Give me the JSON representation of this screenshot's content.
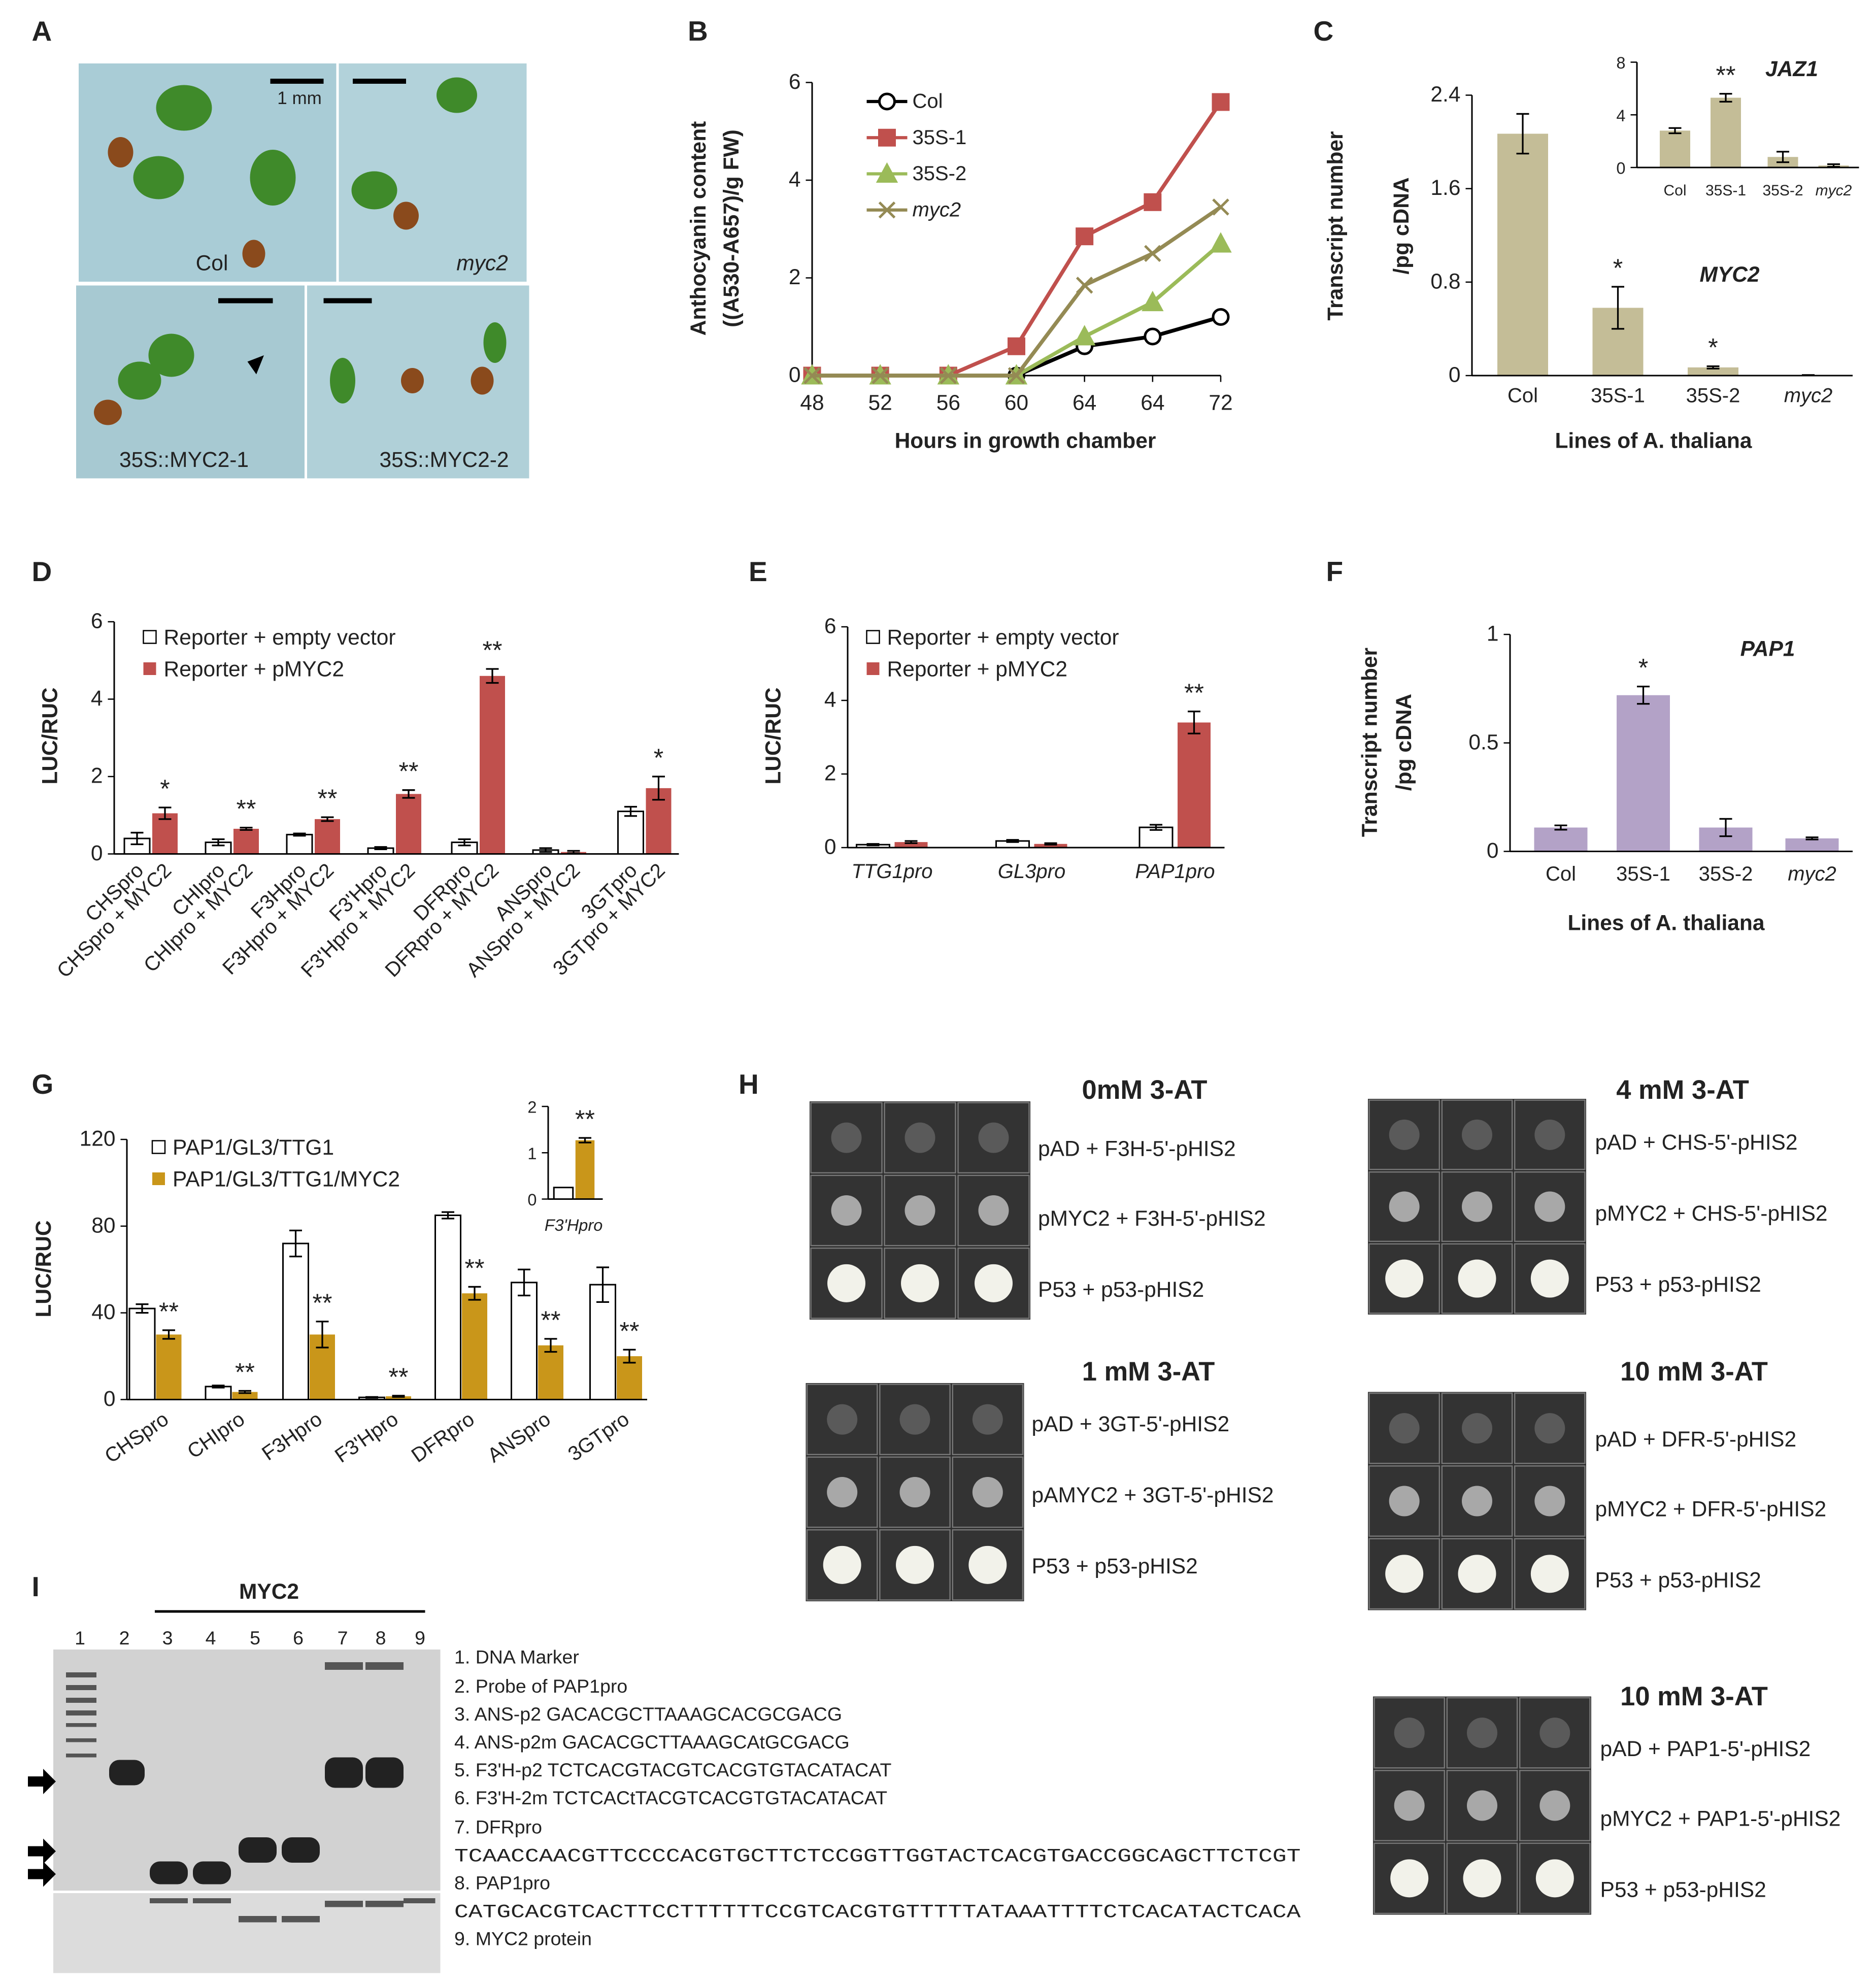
{
  "panel_labels": [
    "A",
    "B",
    "C",
    "D",
    "E",
    "F",
    "G",
    "H",
    "I"
  ],
  "photo_a": {
    "scale_bar": "1 mm",
    "labels": [
      "Col",
      "myc2",
      "35S::MYC2-1",
      "35S::MYC2-2"
    ]
  },
  "chart_data": [
    {
      "type": "line",
      "ylabel": [
        "Anthocyanin content",
        "((A530-A657)/g FW)"
      ],
      "xlabel": "Hours in growth chamber",
      "categories": [
        "48",
        "52",
        "56",
        "60",
        "64",
        "64",
        "72"
      ],
      "ylim": [
        0,
        6
      ],
      "yticks": [
        0,
        2,
        4,
        6
      ],
      "legend": "upper left",
      "series": [
        {
          "name": "Col",
          "color": "#000000",
          "marker": "circle",
          "marker_face": "none",
          "values": [
            0,
            0,
            0,
            0,
            0.6,
            0.8,
            1.2
          ]
        },
        {
          "name": "35S-1",
          "color": "#c0504d",
          "marker": "square",
          "values": [
            0,
            0,
            0,
            0.6,
            2.85,
            3.55,
            5.6
          ]
        },
        {
          "name": "35S-2",
          "color": "#9bbb59",
          "marker": "triangle",
          "values": [
            0,
            0,
            0,
            0,
            0.8,
            1.5,
            2.7
          ]
        },
        {
          "name": "myc2",
          "color": "#948a54",
          "marker": "x",
          "values": [
            0,
            0,
            0,
            0,
            1.85,
            2.5,
            3.45
          ]
        }
      ]
    },
    {
      "type": "bar",
      "title": "MYC2",
      "ylabel": [
        "Transcript number",
        "/pg cDNA"
      ],
      "xlabel": "Lines of A. thaliana",
      "categories": [
        "Col",
        "35S-1",
        "35S-2",
        "myc2"
      ],
      "values": [
        2.07,
        0.58,
        0.07,
        0.005
      ],
      "errors": [
        0.17,
        0.18,
        0.01,
        0
      ],
      "significance": [
        null,
        "*",
        "*",
        null
      ],
      "color": "#c4bd97",
      "ylim": [
        0,
        2.4
      ],
      "yticks": [
        0,
        0.8,
        1.6,
        2.4
      ]
    },
    {
      "type": "bar",
      "title": "JAZ1",
      "categories": [
        "Col",
        "35S-1",
        "35S-2",
        "myc2"
      ],
      "values": [
        2.8,
        5.3,
        0.8,
        0.15
      ],
      "errors": [
        0.2,
        0.3,
        0.4,
        0.1
      ],
      "significance": [
        null,
        "**",
        null,
        null
      ],
      "color": "#c4bd97",
      "ylim": [
        0,
        8
      ],
      "yticks": [
        0,
        4,
        8
      ]
    },
    {
      "type": "bar",
      "ylabel": [
        "LUC/RUC"
      ],
      "ylim": [
        0,
        6
      ],
      "yticks": [
        0,
        2,
        4,
        6
      ],
      "legend": "upper left",
      "series": [
        {
          "name": "Reporter + empty vector",
          "color": "#ffffff",
          "edgecolor": "#000000",
          "labels": [
            "CHSpro",
            "CHIpro",
            "F3Hpro",
            "F3'Hpro",
            "DFRpro",
            "ANSpro",
            "3GTpro"
          ],
          "values": [
            0.4,
            0.3,
            0.5,
            0.15,
            0.3,
            0.1,
            1.1
          ],
          "errors": [
            0.15,
            0.08,
            0.03,
            0.03,
            0.08,
            0.05,
            0.12
          ]
        },
        {
          "name": "Reporter + pMYC2",
          "color": "#c0504d",
          "labels": [
            "CHSpro + MYC2",
            "CHIpro + MYC2",
            "F3Hpro + MYC2",
            "F3'Hpro + MYC2",
            "DFRpro + MYC2",
            "ANSpro + MYC2",
            "3GTpro + MYC2"
          ],
          "values": [
            1.05,
            0.65,
            0.9,
            1.55,
            4.6,
            0.05,
            1.7
          ],
          "errors": [
            0.15,
            0.03,
            0.05,
            0.1,
            0.18,
            0.03,
            0.3
          ],
          "significance": [
            "*",
            "**",
            "**",
            "**",
            "**",
            null,
            "*"
          ]
        }
      ]
    },
    {
      "type": "bar",
      "ylabel": [
        "LUC/RUC"
      ],
      "ylim": [
        0,
        6
      ],
      "yticks": [
        0,
        2,
        4,
        6
      ],
      "legend": "upper left",
      "categories": [
        "TTG1pro",
        "GL3pro",
        "PAP1pro"
      ],
      "series": [
        {
          "name": "Reporter + empty vector",
          "color": "#ffffff",
          "edgecolor": "#000000",
          "values": [
            0.08,
            0.18,
            0.55
          ],
          "errors": [
            0.02,
            0.03,
            0.07
          ]
        },
        {
          "name": "Reporter + pMYC2",
          "color": "#c0504d",
          "values": [
            0.15,
            0.1,
            3.4
          ],
          "errors": [
            0.03,
            0.02,
            0.3
          ],
          "significance": [
            null,
            null,
            "**"
          ]
        }
      ]
    },
    {
      "type": "bar",
      "title": "PAP1",
      "ylabel": [
        "Transcript number",
        "/pg cDNA"
      ],
      "xlabel": "Lines of A. thaliana",
      "categories": [
        "Col",
        "35S-1",
        "35S-2",
        "myc2"
      ],
      "values": [
        0.11,
        0.72,
        0.11,
        0.06
      ],
      "errors": [
        0.01,
        0.04,
        0.04,
        0.005
      ],
      "significance": [
        null,
        "*",
        null,
        null
      ],
      "color": "#b3a2c7",
      "ylim": [
        0,
        1
      ],
      "yticks": [
        0,
        0.5,
        1
      ]
    },
    {
      "type": "bar",
      "ylabel": [
        "LUC/RUC"
      ],
      "ylim": [
        0,
        120
      ],
      "yticks": [
        0,
        40,
        80,
        120
      ],
      "legend": "upper left",
      "categories": [
        "CHSpro",
        "CHIpro",
        "F3Hpro",
        "F3'Hpro",
        "DFRpro",
        "ANSpro",
        "3GTpro"
      ],
      "series": [
        {
          "name": "PAP1/GL3/TTG1",
          "color": "#ffffff",
          "edgecolor": "#000000",
          "values": [
            42,
            6,
            72,
            1,
            85,
            54,
            53
          ],
          "errors": [
            2,
            0.5,
            6,
            0.2,
            1.5,
            6,
            8
          ]
        },
        {
          "name": "PAP1/GL3/TTG1/MYC2",
          "color": "#c9961a",
          "values": [
            30,
            3.5,
            30,
            1.5,
            49,
            25,
            20
          ],
          "errors": [
            2,
            0.5,
            6,
            0.3,
            3,
            3,
            3
          ],
          "significance": [
            "**",
            "**",
            "**",
            "**",
            "**",
            "**",
            "**"
          ]
        }
      ]
    },
    {
      "type": "bar",
      "categories": [
        "F3'Hpro"
      ],
      "ylim": [
        0,
        2
      ],
      "yticks": [
        0,
        1,
        2
      ],
      "series": [
        {
          "color": "#ffffff",
          "edgecolor": "#000000",
          "values": [
            0.25
          ]
        },
        {
          "color": "#c9961a",
          "values": [
            1.27
          ],
          "errors": [
            0.05
          ],
          "significance": [
            "**"
          ]
        }
      ]
    }
  ],
  "yeast_h": [
    {
      "title": "0mM 3-AT",
      "rows": [
        "pAD + F3H-5'-pHIS2",
        "pMYC2 + F3H-5'-pHIS2",
        "P53 + p53-pHIS2"
      ]
    },
    {
      "title": "4 mM 3-AT",
      "rows": [
        "pAD + CHS-5'-pHIS2",
        "pMYC2 + CHS-5'-pHIS2",
        "P53 + p53-pHIS2"
      ]
    },
    {
      "title": "1 mM 3-AT",
      "rows": [
        "pAD + 3GT-5'-pHIS2",
        "pAMYC2 + 3GT-5'-pHIS2",
        "P53 + p53-pHIS2"
      ]
    },
    {
      "title": "10 mM 3-AT",
      "rows": [
        "pAD + DFR-5'-pHIS2",
        "pMYC2 + DFR-5'-pHIS2",
        "P53 + p53-pHIS2"
      ]
    },
    {
      "title": "10 mM 3-AT",
      "rows": [
        "pAD + PAP1-5'-pHIS2",
        "pMYC2 + PAP1-5'-pHIS2",
        "P53 + p53-pHIS2"
      ]
    }
  ],
  "gel_i": {
    "title": "MYC2",
    "lanes": [
      "1",
      "2",
      "3",
      "4",
      "5",
      "6",
      "7",
      "8",
      "9"
    ],
    "legend": [
      "1.  DNA Marker",
      "2.  Probe of PAP1pro",
      "3. ANS-p2      GACACGCTTAAAGCACGCGACG",
      "4. ANS-p2m  GACACGCTTAAAGCAtGCGACG",
      "5. F3'H-p2    TCTCACGTACGTCACGTGTACATACAT",
      "6. F3'H-2m  TCTCACtTACGTCACGTGTACATACAT",
      "7. DFRpro",
      "TCAACCAACGTTCCCCACGTGCTTCTCCGGTTGGTACTCACGTGACCGGCAGCTTCTCGT",
      "8.  PAP1pro",
      "CATGCACGTCACTTCCTTTTTTCCGTCACGTGTTTTTATAAATTTTCTCACATACTCACA",
      "9. MYC2 protein"
    ]
  }
}
